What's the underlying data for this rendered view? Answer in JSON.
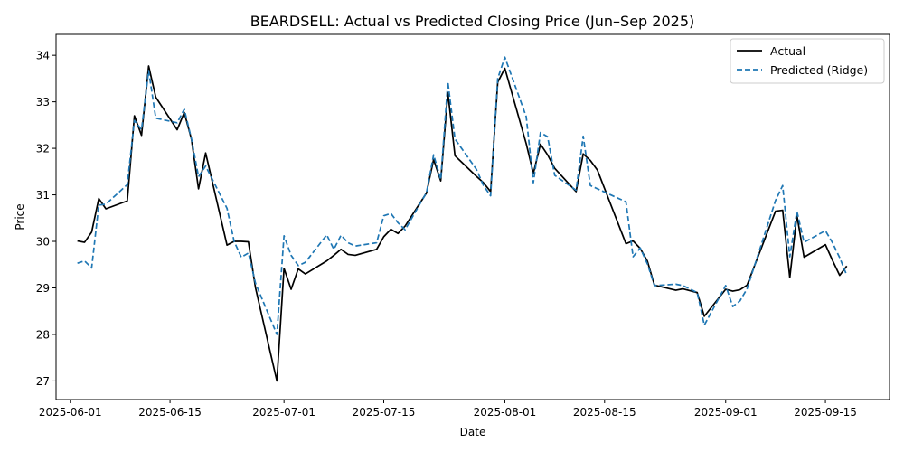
{
  "chart_data": {
    "type": "line",
    "title": "BEARDSELL: Actual vs Predicted Closing Price (Jun–Sep 2025)",
    "xlabel": "Date",
    "ylabel": "Price",
    "xlim": [
      "2025-05-30",
      "2025-09-24"
    ],
    "ylim": [
      26.6,
      34.45
    ],
    "x_ticks": [
      "2025-06-01",
      "2025-06-15",
      "2025-07-01",
      "2025-07-15",
      "2025-08-01",
      "2025-08-15",
      "2025-09-01",
      "2025-09-15"
    ],
    "y_ticks": [
      27,
      28,
      29,
      30,
      31,
      32,
      33,
      34
    ],
    "grid": false,
    "legend_position": "top-right",
    "x": [
      "2025-06-02",
      "2025-06-03",
      "2025-06-04",
      "2025-06-05",
      "2025-06-06",
      "2025-06-09",
      "2025-06-10",
      "2025-06-11",
      "2025-06-12",
      "2025-06-13",
      "2025-06-16",
      "2025-06-17",
      "2025-06-18",
      "2025-06-19",
      "2025-06-20",
      "2025-06-23",
      "2025-06-24",
      "2025-06-25",
      "2025-06-26",
      "2025-06-27",
      "2025-06-30",
      "2025-07-01",
      "2025-07-02",
      "2025-07-03",
      "2025-07-04",
      "2025-07-07",
      "2025-07-08",
      "2025-07-09",
      "2025-07-10",
      "2025-07-11",
      "2025-07-14",
      "2025-07-15",
      "2025-07-16",
      "2025-07-17",
      "2025-07-18",
      "2025-07-21",
      "2025-07-22",
      "2025-07-23",
      "2025-07-24",
      "2025-07-25",
      "2025-07-28",
      "2025-07-29",
      "2025-07-30",
      "2025-07-31",
      "2025-08-01",
      "2025-08-04",
      "2025-08-05",
      "2025-08-06",
      "2025-08-07",
      "2025-08-08",
      "2025-08-11",
      "2025-08-12",
      "2025-08-13",
      "2025-08-14",
      "2025-08-18",
      "2025-08-19",
      "2025-08-20",
      "2025-08-21",
      "2025-08-22",
      "2025-08-25",
      "2025-08-26",
      "2025-08-28",
      "2025-08-29",
      "2025-09-01",
      "2025-09-02",
      "2025-09-03",
      "2025-09-04",
      "2025-09-08",
      "2025-09-09",
      "2025-09-10",
      "2025-09-11",
      "2025-09-12",
      "2025-09-15",
      "2025-09-16",
      "2025-09-17",
      "2025-09-18"
    ],
    "series": [
      {
        "name": "Actual",
        "color": "#000000",
        "dash": "solid",
        "values": [
          30.01,
          29.98,
          30.2,
          30.92,
          30.7,
          30.87,
          32.7,
          32.28,
          33.77,
          33.1,
          32.4,
          32.77,
          32.2,
          31.13,
          31.9,
          29.92,
          30.0,
          30.0,
          29.99,
          29.0,
          27.0,
          29.42,
          28.97,
          29.41,
          29.3,
          29.58,
          29.7,
          29.83,
          29.72,
          29.7,
          29.83,
          30.1,
          30.26,
          30.17,
          30.33,
          31.04,
          31.76,
          31.3,
          33.2,
          31.84,
          31.4,
          31.26,
          31.07,
          33.42,
          33.72,
          32.1,
          31.46,
          32.09,
          31.86,
          31.57,
          31.07,
          31.88,
          31.74,
          31.53,
          29.95,
          30.01,
          29.85,
          29.58,
          29.06,
          28.95,
          28.98,
          28.9,
          28.39,
          28.97,
          28.93,
          28.96,
          29.06,
          30.65,
          30.67,
          29.22,
          30.56,
          29.66,
          29.93,
          29.59,
          29.27,
          29.47
        ]
      },
      {
        "name": "Predicted (Ridge)",
        "color": "#1f77b4",
        "dash": "dashed",
        "values": [
          29.53,
          29.58,
          29.43,
          30.78,
          30.8,
          31.22,
          32.6,
          32.4,
          33.67,
          32.65,
          32.55,
          32.84,
          32.21,
          31.39,
          31.62,
          30.71,
          30.0,
          29.66,
          29.75,
          29.1,
          28.0,
          30.12,
          29.7,
          29.48,
          29.55,
          30.14,
          29.83,
          30.13,
          29.97,
          29.9,
          29.97,
          30.55,
          30.6,
          30.4,
          30.25,
          31.05,
          31.86,
          31.33,
          33.43,
          32.2,
          31.55,
          31.2,
          30.98,
          33.5,
          33.96,
          32.68,
          31.26,
          32.34,
          32.25,
          31.42,
          31.1,
          32.26,
          31.2,
          31.13,
          30.85,
          29.67,
          29.86,
          29.52,
          29.05,
          29.08,
          29.05,
          28.9,
          28.2,
          29.05,
          28.6,
          28.72,
          28.98,
          30.88,
          31.2,
          29.67,
          30.65,
          29.98,
          30.23,
          29.97,
          29.65,
          29.27
        ]
      }
    ]
  }
}
